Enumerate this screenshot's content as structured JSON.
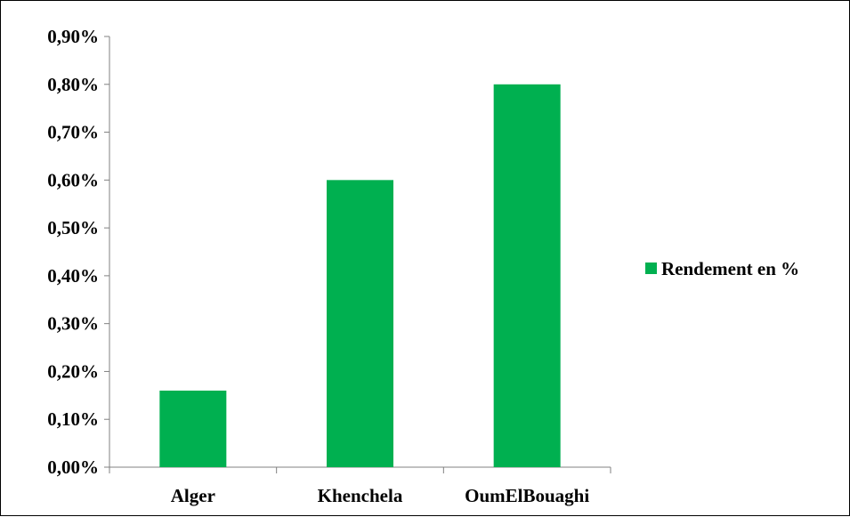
{
  "chart_data": {
    "type": "bar",
    "title": "",
    "xlabel": "",
    "ylabel": "",
    "categories": [
      "Alger",
      "Khenchela",
      "OumElBouaghi"
    ],
    "series": [
      {
        "name": "Rendement en %",
        "values": [
          0.16,
          0.6,
          0.8
        ],
        "color": "#00b050"
      }
    ],
    "ylim": [
      0,
      0.9
    ],
    "yticks": [
      0.0,
      0.1,
      0.2,
      0.3,
      0.4,
      0.5,
      0.6,
      0.7,
      0.8,
      0.9
    ],
    "ytick_labels": [
      "0,00%",
      "0,10%",
      "0,20%",
      "0,30%",
      "0,40%",
      "0,50%",
      "0,60%",
      "0,70%",
      "0,80%",
      "0,90%"
    ],
    "grid": false,
    "legend": {
      "position": "right",
      "labels": [
        "Rendement en %"
      ]
    }
  },
  "colors": {
    "axis": "#808080",
    "bar": "#00b050"
  }
}
